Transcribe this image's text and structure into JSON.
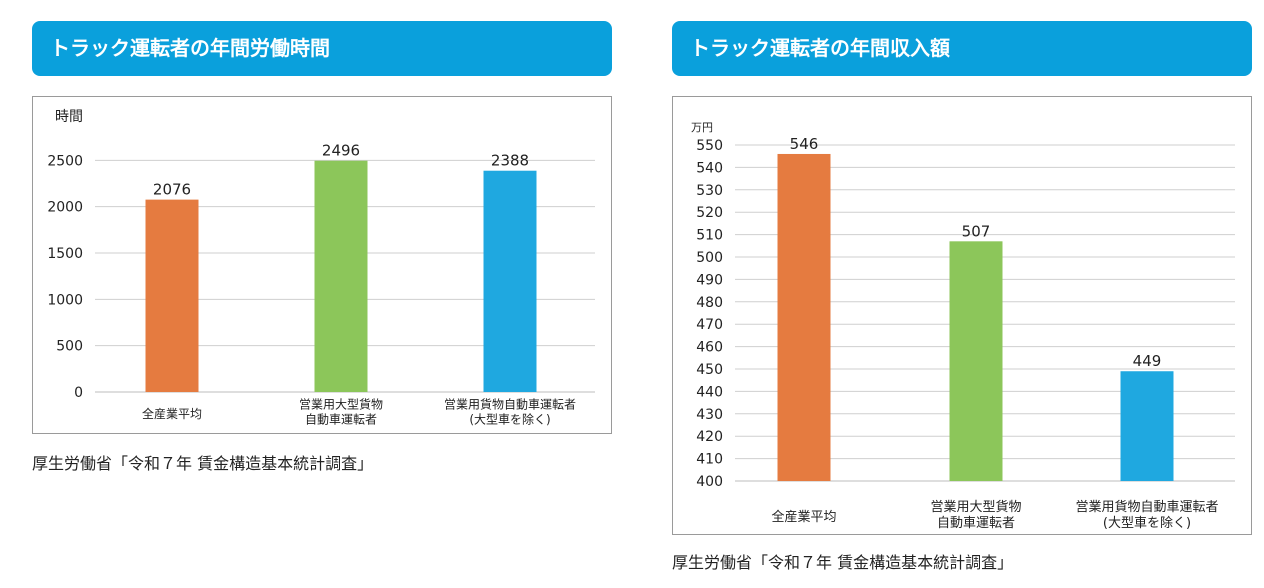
{
  "left": {
    "header": "トラック運転者の年間労働時間",
    "source": "厚生労働省「令和７年 賃金構造基本統計調査」"
  },
  "right": {
    "header": "トラック運転者の年間収入額",
    "source": "厚生労働省「令和７年 賃金構造基本統計調査」"
  },
  "colors": {
    "orange": "#e57b40",
    "green": "#8cc65a",
    "blue": "#1fa8e0",
    "header": "#0aa0dc"
  },
  "chart_data": [
    {
      "type": "bar",
      "title": "",
      "ylabel": "時間",
      "xlabel": "",
      "categories": [
        [
          "全産業平均"
        ],
        [
          "営業用大型貨物",
          "自動車運転者"
        ],
        [
          "営業用貨物自動車運転者",
          "(大型車を除く)"
        ]
      ],
      "values": [
        2076,
        2496,
        2388
      ],
      "value_labels": [
        "2076",
        "2496",
        "2388"
      ],
      "ylim": [
        0,
        3000
      ],
      "yticks": [
        0,
        500,
        1000,
        1500,
        2000,
        2500
      ],
      "grid": true,
      "legend": "none"
    },
    {
      "type": "bar",
      "title": "",
      "ylabel": "万円",
      "xlabel": "",
      "categories": [
        [
          "全産業平均"
        ],
        [
          "営業用大型貨物",
          "自動車運転者"
        ],
        [
          "営業用貨物自動車運転者",
          "(大型車を除く)"
        ]
      ],
      "values": [
        546,
        507,
        449
      ],
      "value_labels": [
        "546",
        "507",
        "449"
      ],
      "ylim": [
        400,
        550
      ],
      "yticks": [
        400,
        410,
        420,
        430,
        440,
        450,
        460,
        470,
        480,
        490,
        500,
        510,
        520,
        530,
        540,
        550
      ],
      "grid": true,
      "legend": "none"
    }
  ]
}
